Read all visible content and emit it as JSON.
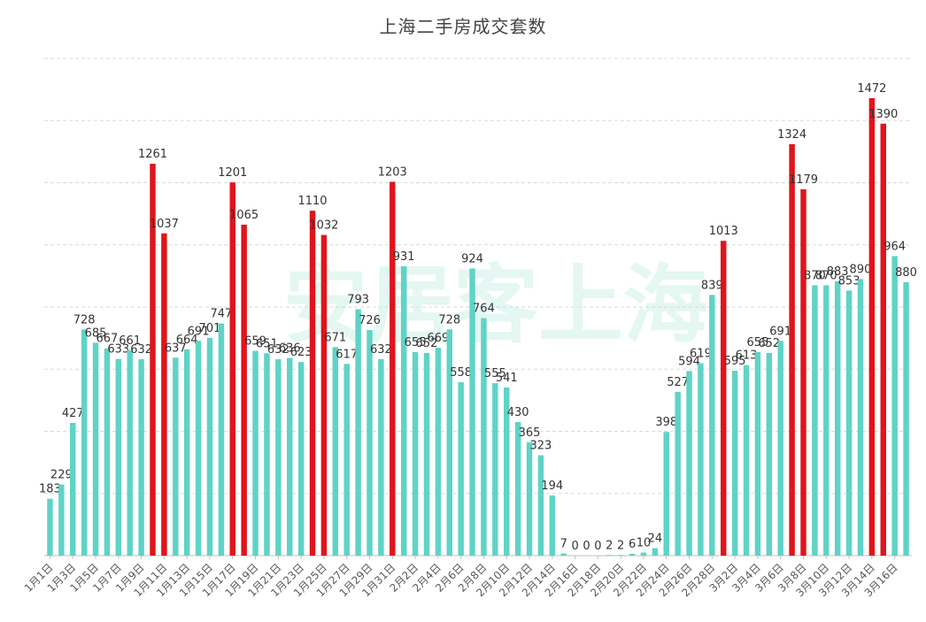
{
  "chart_data": {
    "type": "bar",
    "title": "上海二手房成交套数",
    "xlabel": "",
    "ylabel": "",
    "ylim": [
      0,
      1600
    ],
    "grid": true,
    "legend": "none",
    "watermark": "安居客上海",
    "colors": {
      "normal": "#5fd3c6",
      "highlight": "#e0141c",
      "grid": "#d9d9d9",
      "axis": "#bfbfbf"
    },
    "categories": [
      "1月1日",
      "1月2日",
      "1月3日",
      "1月4日",
      "1月5日",
      "1月6日",
      "1月7日",
      "1月8日",
      "1月9日",
      "1月10日",
      "1月11日",
      "1月12日",
      "1月13日",
      "1月14日",
      "1月15日",
      "1月16日",
      "1月17日",
      "1月18日",
      "1月19日",
      "1月20日",
      "1月21日",
      "1月22日",
      "1月23日",
      "1月24日",
      "1月25日",
      "1月26日",
      "1月27日",
      "1月28日",
      "1月29日",
      "1月30日",
      "1月31日",
      "2月1日",
      "2月2日",
      "2月3日",
      "2月4日",
      "2月5日",
      "2月6日",
      "2月7日",
      "2月8日",
      "2月9日",
      "2月10日",
      "2月11日",
      "2月12日",
      "2月13日",
      "2月14日",
      "2月15日",
      "2月16日",
      "2月17日",
      "2月18日",
      "2月19日",
      "2月20日",
      "2月21日",
      "2月22日",
      "2月23日",
      "2月24日",
      "2月25日",
      "2月26日",
      "2月27日",
      "2月28日",
      "3月1日",
      "3月2日",
      "3月3日",
      "3月4日",
      "3月5日",
      "3月6日",
      "3月7日",
      "3月8日",
      "3月9日",
      "3月10日",
      "3月11日",
      "3月12日",
      "3月13日",
      "3月14日",
      "3月15日",
      "3月16日",
      "3月17日"
    ],
    "values": [
      183,
      229,
      427,
      728,
      685,
      667,
      633,
      661,
      632,
      1261,
      1037,
      637,
      664,
      691,
      701,
      747,
      1201,
      1065,
      659,
      651,
      632,
      636,
      623,
      1110,
      1032,
      671,
      617,
      793,
      726,
      632,
      1203,
      931,
      655,
      652,
      669,
      728,
      558,
      924,
      764,
      555,
      541,
      430,
      365,
      323,
      194,
      7,
      0,
      0,
      0,
      2,
      2,
      6,
      10,
      24,
      398,
      527,
      594,
      619,
      839,
      1013,
      595,
      613,
      655,
      652,
      691,
      1324,
      1179,
      870,
      870,
      883,
      853,
      890,
      1472,
      1390,
      964,
      880
    ],
    "value_labels": [
      "183",
      "229",
      "427",
      "728",
      "685",
      "667",
      "633",
      "661",
      "632",
      "1261",
      "1037",
      "637",
      "664",
      "691",
      "701",
      "747",
      "1201",
      "1065",
      "659",
      "651",
      "632",
      "636",
      "623",
      "1110",
      "1032",
      "671",
      "617",
      "793",
      "726",
      "632",
      "1203",
      "931",
      "655",
      "652",
      "669",
      "728",
      "558",
      "924",
      "764",
      "555",
      "541",
      "430",
      "365",
      "323",
      "194",
      "7",
      "0",
      "0",
      "0",
      "2",
      "2",
      "6",
      "10",
      "24",
      "398",
      "527",
      "594",
      "619",
      "839",
      "1013",
      "595",
      "613",
      "655",
      "652",
      "691",
      "1324",
      "1179",
      "870",
      "870",
      "883",
      "853",
      "890",
      "1472",
      "1390",
      "964",
      "880"
    ],
    "highlight_indices": [
      9,
      10,
      16,
      17,
      23,
      24,
      30,
      59,
      65,
      66,
      72,
      73
    ],
    "xtick_every": 2
  }
}
